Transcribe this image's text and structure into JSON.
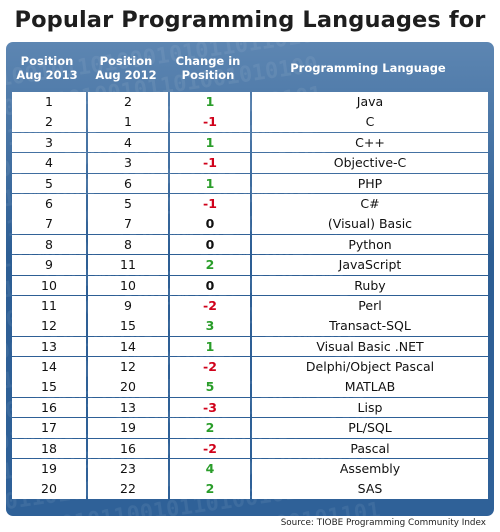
{
  "title": "Popular Programming Languages for August",
  "headers": {
    "position_2013": "Position Aug 2013",
    "position_2012": "Position Aug 2012",
    "change": "Change in Position",
    "language": "Programming Language"
  },
  "source": "Source: TIOBE Programming Community Index",
  "colors": {
    "positive": "#2a9d2a",
    "negative": "#d0021b",
    "panel": "#2f6198"
  },
  "chart_data": {
    "type": "table",
    "columns": [
      "Position Aug 2013",
      "Position Aug 2012",
      "Change in Position",
      "Programming Language"
    ],
    "rows": [
      {
        "pos2013": "1",
        "pos2012": "2",
        "change": "1",
        "language": "Java"
      },
      {
        "pos2013": "2",
        "pos2012": "1",
        "change": "-1",
        "language": "C"
      },
      {
        "pos2013": "3",
        "pos2012": "4",
        "change": "1",
        "language": "C++"
      },
      {
        "pos2013": "4",
        "pos2012": "3",
        "change": "-1",
        "language": "Objective-C"
      },
      {
        "pos2013": "5",
        "pos2012": "6",
        "change": "1",
        "language": "PHP"
      },
      {
        "pos2013": "6",
        "pos2012": "5",
        "change": "-1",
        "language": "C#"
      },
      {
        "pos2013": "7",
        "pos2012": "7",
        "change": "0",
        "language": "(Visual) Basic"
      },
      {
        "pos2013": "8",
        "pos2012": "8",
        "change": "0",
        "language": "Python"
      },
      {
        "pos2013": "9",
        "pos2012": "11",
        "change": "2",
        "language": "JavaScript"
      },
      {
        "pos2013": "10",
        "pos2012": "10",
        "change": "0",
        "language": "Ruby"
      },
      {
        "pos2013": "11",
        "pos2012": "9",
        "change": "-2",
        "language": "Perl"
      },
      {
        "pos2013": "12",
        "pos2012": "15",
        "change": "3",
        "language": "Transact-SQL"
      },
      {
        "pos2013": "13",
        "pos2012": "14",
        "change": "1",
        "language": "Visual Basic .NET"
      },
      {
        "pos2013": "14",
        "pos2012": "12",
        "change": "-2",
        "language": "Delphi/Object Pascal"
      },
      {
        "pos2013": "15",
        "pos2012": "20",
        "change": "5",
        "language": "MATLAB"
      },
      {
        "pos2013": "16",
        "pos2012": "13",
        "change": "-3",
        "language": "Lisp"
      },
      {
        "pos2013": "17",
        "pos2012": "19",
        "change": "2",
        "language": "PL/SQL"
      },
      {
        "pos2013": "18",
        "pos2012": "16",
        "change": "-2",
        "language": "Pascal"
      },
      {
        "pos2013": "19",
        "pos2012": "23",
        "change": "4",
        "language": "Assembly"
      },
      {
        "pos2013": "20",
        "pos2012": "22",
        "change": "2",
        "language": "SAS"
      }
    ]
  }
}
